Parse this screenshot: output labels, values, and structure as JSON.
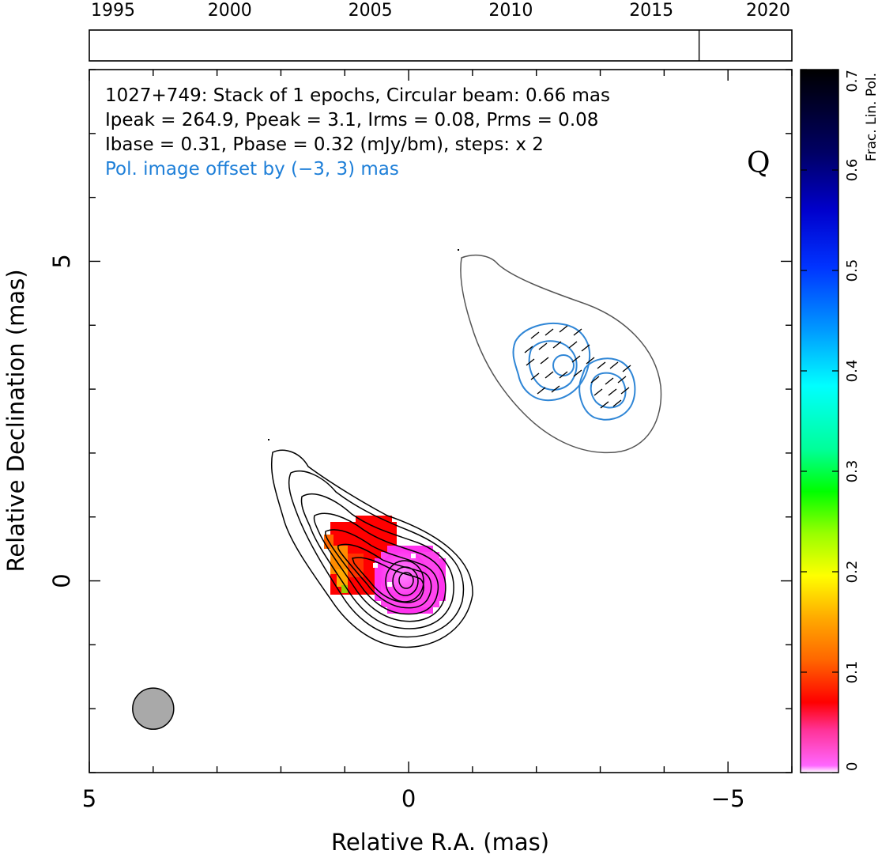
{
  "chart_data": {
    "type": "map",
    "source": "1027+749",
    "annotations": {
      "line1": "1027+749: Stack of 1 epochs, Circular beam: 0.66 mas",
      "line2": "Ipeak = 264.9, Ppeak = 3.1, Irms = 0.08, Prms = 0.08",
      "line3": "Ibase = 0.31, Pbase = 0.32 (mJy/bm), steps: x 2",
      "line4": "Pol. image offset by (−3, 3) mas",
      "quality": "Q"
    },
    "xlabel": "Relative R.A. (mas)",
    "ylabel": "Relative Declination (mas)",
    "xlim": [
      5,
      -6
    ],
    "ylim": [
      -3,
      8
    ],
    "xticks": [
      {
        "value": 5,
        "label": "5"
      },
      {
        "value": 0,
        "label": "0"
      },
      {
        "value": -5,
        "label": "−5"
      }
    ],
    "yticks": [
      {
        "value": 5,
        "label": "5"
      },
      {
        "value": 0,
        "label": "0"
      }
    ],
    "timeline": {
      "range": [
        1995,
        2020
      ],
      "labels": [
        "1995",
        "2000",
        "2005",
        "2010",
        "2015",
        "2020"
      ],
      "epochs": [
        2016.7
      ]
    },
    "colorbar": {
      "label": "Frac. Lin. Pol.",
      "range": [
        0,
        0.7
      ],
      "ticks": [
        "0",
        "0.1",
        "0.2",
        "0.3",
        "0.4",
        "0.5",
        "0.6",
        "0.7"
      ]
    },
    "beam": {
      "ra": 4,
      "dec": -2,
      "diameter_mas": 0.66
    },
    "core": {
      "ra": 0,
      "dec": 0
    },
    "pol_offset_mas": [
      -3,
      3
    ],
    "accent_colors": {
      "pol_contours": "#2f86d6",
      "annotation_blue": "#1e7fd8"
    }
  }
}
